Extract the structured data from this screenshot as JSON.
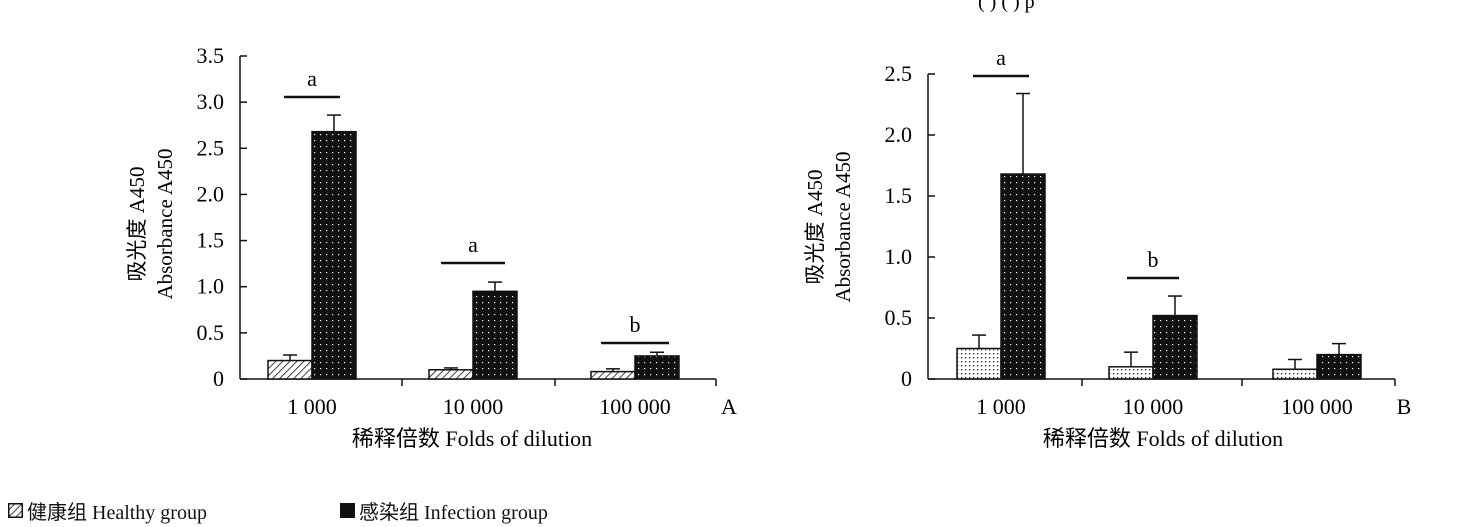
{
  "header_fragment": "(                    )            (                    )    p",
  "chart_data": [
    {
      "type": "bar",
      "panel": "A",
      "categories": [
        "1 000",
        "10 000",
        "100 000"
      ],
      "series": [
        {
          "name": "健康组 Healthy group",
          "values": [
            0.2,
            0.1,
            0.08
          ],
          "errors": [
            0.06,
            0.02,
            0.03
          ]
        },
        {
          "name": "感染组 Infection group",
          "values": [
            2.68,
            0.95,
            0.25
          ],
          "errors": [
            0.18,
            0.1,
            0.04
          ]
        }
      ],
      "xlabel": "稀释倍数 Folds of dilution",
      "ylabel_line1": "吸光度 A450",
      "ylabel_line2": "Absorbance A450",
      "ylim": [
        0,
        3.5
      ],
      "yticks": [
        "0",
        "0.5",
        "1.0",
        "1.5",
        "2.0",
        "2.5",
        "3.0",
        "3.5"
      ],
      "significance": [
        "a",
        "a",
        "b"
      ]
    },
    {
      "type": "bar",
      "panel": "B",
      "categories": [
        "1 000",
        "10 000",
        "100 000"
      ],
      "series": [
        {
          "name": "健康组 Healthy group",
          "values": [
            0.25,
            0.1,
            0.08
          ],
          "errors": [
            0.11,
            0.12,
            0.08
          ]
        },
        {
          "name": "感染组 Infection group",
          "values": [
            1.68,
            0.52,
            0.2
          ],
          "errors": [
            0.66,
            0.16,
            0.09
          ]
        }
      ],
      "xlabel": "稀释倍数 Folds of dilution",
      "ylabel_line1": "吸光度 A450",
      "ylabel_line2": "Absorbance A450",
      "ylim": [
        0,
        2.5
      ],
      "yticks": [
        "0",
        "0.5",
        "1.0",
        "1.5",
        "2.0",
        "2.5"
      ],
      "significance": [
        "a",
        "b",
        ""
      ]
    }
  ],
  "legend": {
    "healthy": "健康组 Healthy group",
    "infection": "感染组 Infection group"
  }
}
